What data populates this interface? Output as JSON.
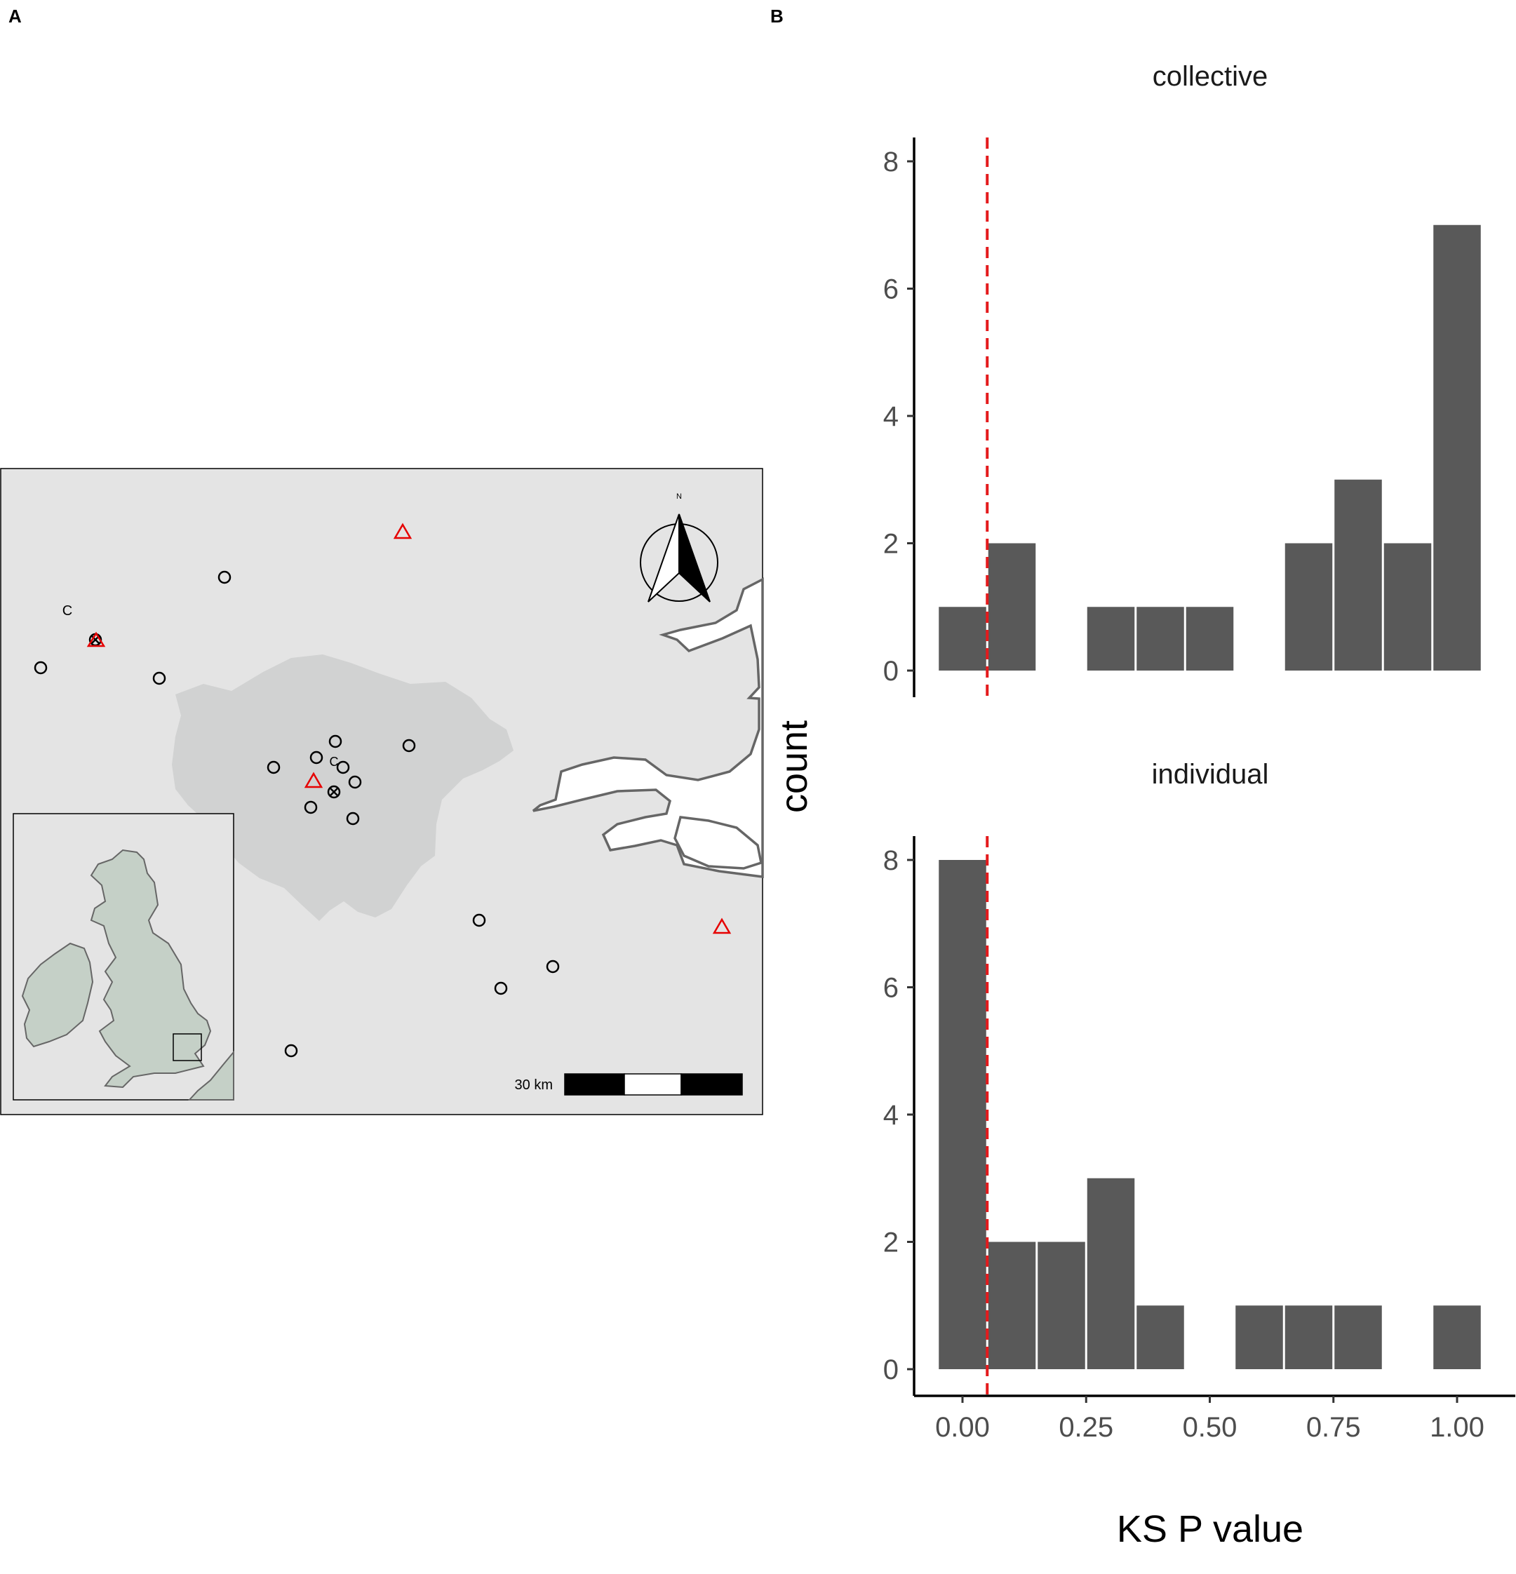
{
  "panels": {
    "a_label": "A",
    "b_label": "B"
  },
  "map": {
    "site_letter": "C",
    "north_label": "N",
    "scale_label": "30 km",
    "colors": {
      "background": "#e4e4e4",
      "london": "#d1d2d2",
      "water": "#ffffff",
      "coast": "#666666",
      "inset_land": "#c5d0c7",
      "site_marker": "#000000",
      "triangle_marker": "#e60000"
    },
    "markers": [
      "circle-marker",
      "crossed-circle-marker",
      "triangle-marker"
    ]
  },
  "chart_data": {
    "type": "bar",
    "subtype": "histogram",
    "xlabel": "KS P value",
    "ylabel": "count",
    "xlim": [
      -0.05,
      1.05
    ],
    "ylim": [
      0,
      8
    ],
    "x_ticks": [
      "0.00",
      "0.25",
      "0.50",
      "0.75",
      "1.00"
    ],
    "x_tick_values": [
      0,
      0.25,
      0.5,
      0.75,
      1
    ],
    "y_ticks": [
      "0",
      "2",
      "4",
      "6",
      "8"
    ],
    "y_tick_values": [
      0,
      2,
      4,
      6,
      8
    ],
    "bin_width": 0.1,
    "bin_centers": [
      0,
      0.1,
      0.2,
      0.3,
      0.4,
      0.5,
      0.6,
      0.7,
      0.8,
      0.9,
      1.0
    ],
    "reference_line": {
      "x": 0.05,
      "style": "dashed",
      "color": "#e41a1c"
    },
    "bar_color": "#595959",
    "grid": false,
    "facets": [
      {
        "title": "collective",
        "counts": [
          1,
          2,
          0,
          1,
          1,
          1,
          0,
          2,
          3,
          2,
          7
        ]
      },
      {
        "title": "individual",
        "counts": [
          8,
          2,
          2,
          3,
          1,
          0,
          1,
          1,
          1,
          0,
          1
        ]
      }
    ]
  }
}
